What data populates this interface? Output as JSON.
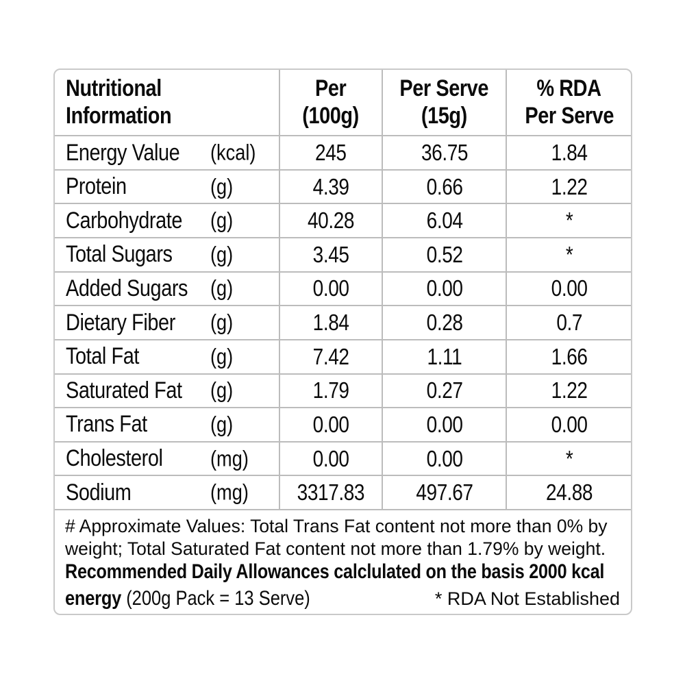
{
  "colors": {
    "background": "#ffffff",
    "text": "#0b0b0b",
    "grid_line": "#bcbcbc",
    "outer_border": "#c9c9c9"
  },
  "table": {
    "header": {
      "info_line1": "Nutritional",
      "info_line2": "Information",
      "per100_line1": "Per",
      "per100_line2": "(100g)",
      "serve_line1": "Per Serve",
      "serve_line2": "(15g)",
      "rda_line1": "% RDA",
      "rda_line2": "Per Serve"
    },
    "rows": [
      {
        "label": "Energy Value",
        "unit": "(kcal)",
        "per_100g": "245",
        "per_serve": "36.75",
        "rda_per_serve": "1.84"
      },
      {
        "label": "Protein",
        "unit": "(g)",
        "per_100g": "4.39",
        "per_serve": "0.66",
        "rda_per_serve": "1.22"
      },
      {
        "label": "Carbohydrate",
        "unit": "(g)",
        "per_100g": "40.28",
        "per_serve": "6.04",
        "rda_per_serve": "*"
      },
      {
        "label": "Total Sugars",
        "unit": "(g)",
        "per_100g": "3.45",
        "per_serve": "0.52",
        "rda_per_serve": "*"
      },
      {
        "label": "Added Sugars",
        "unit": "(g)",
        "per_100g": "0.00",
        "per_serve": "0.00",
        "rda_per_serve": "0.00"
      },
      {
        "label": "Dietary Fiber",
        "unit": "(g)",
        "per_100g": "1.84",
        "per_serve": "0.28",
        "rda_per_serve": "0.7"
      },
      {
        "label": "Total Fat",
        "unit": "(g)",
        "per_100g": "7.42",
        "per_serve": "1.11",
        "rda_per_serve": "1.66"
      },
      {
        "label": "Saturated Fat",
        "unit": "(g)",
        "per_100g": "1.79",
        "per_serve": "0.27",
        "rda_per_serve": "1.22"
      },
      {
        "label": "Trans Fat",
        "unit": "(g)",
        "per_100g": "0.00",
        "per_serve": "0.00",
        "rda_per_serve": "0.00"
      },
      {
        "label": "Cholesterol",
        "unit": "(mg)",
        "per_100g": "0.00",
        "per_serve": "0.00",
        "rda_per_serve": "*"
      },
      {
        "label": "Sodium",
        "unit": "(mg)",
        "per_100g": "3317.83",
        "per_serve": "497.67",
        "rda_per_serve": "24.88"
      }
    ]
  },
  "footnote": {
    "approx_line1": "# Approximate Values: Total Trans Fat content not more than 0% by",
    "approx_line2": "weight; Total Saturated Fat content not more than 1.79% by weight.",
    "rda_bold_line": "Recommended Daily Allowances calclulated on the basis 2000 kcal",
    "energy_bold": "energy",
    "pack_info": " (200g Pack = 13 Serve)",
    "rda_not_established": "* RDA Not Established"
  }
}
